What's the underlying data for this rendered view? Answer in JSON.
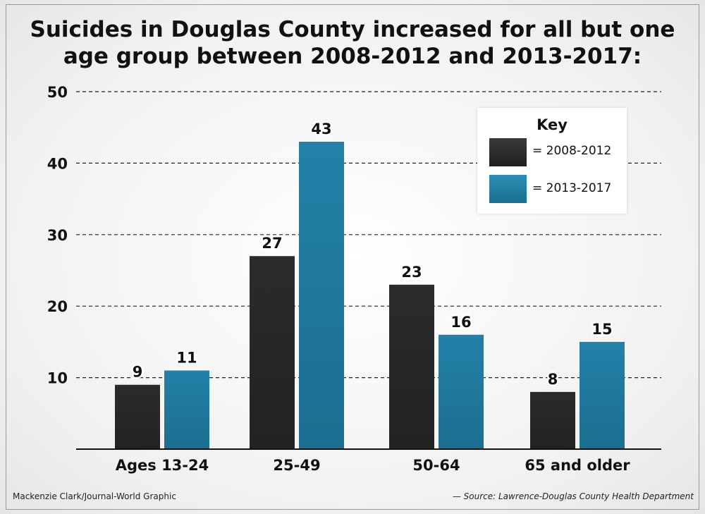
{
  "title_line1": "Suicides in Douglas County increased for all but one",
  "title_line2": "age group between 2008-2012 and 2013-2017:",
  "credit": "Mackenzie Clark/Journal-World Graphic",
  "source": "— Source: Lawrence-Douglas County Health Department",
  "legend": {
    "title": "Key",
    "items": [
      {
        "label": "= 2008-2012"
      },
      {
        "label": "= 2013-2017"
      }
    ]
  },
  "chart_data": {
    "type": "bar",
    "title": "Suicides in Douglas County increased for all but one age group between 2008-2012 and 2013-2017:",
    "categories": [
      "Ages 13-24",
      "25-49",
      "50-64",
      "65 and older"
    ],
    "series": [
      {
        "name": "2008-2012",
        "values": [
          9,
          27,
          23,
          8
        ],
        "color": "#2b2b2b"
      },
      {
        "name": "2013-2017",
        "values": [
          11,
          43,
          16,
          15
        ],
        "color": "#2381a8"
      }
    ],
    "yticks": [
      10,
      20,
      30,
      40,
      50
    ],
    "ylim": [
      0,
      50
    ],
    "xlabel": "",
    "ylabel": "",
    "grid": true,
    "legend_position": "top-right"
  }
}
